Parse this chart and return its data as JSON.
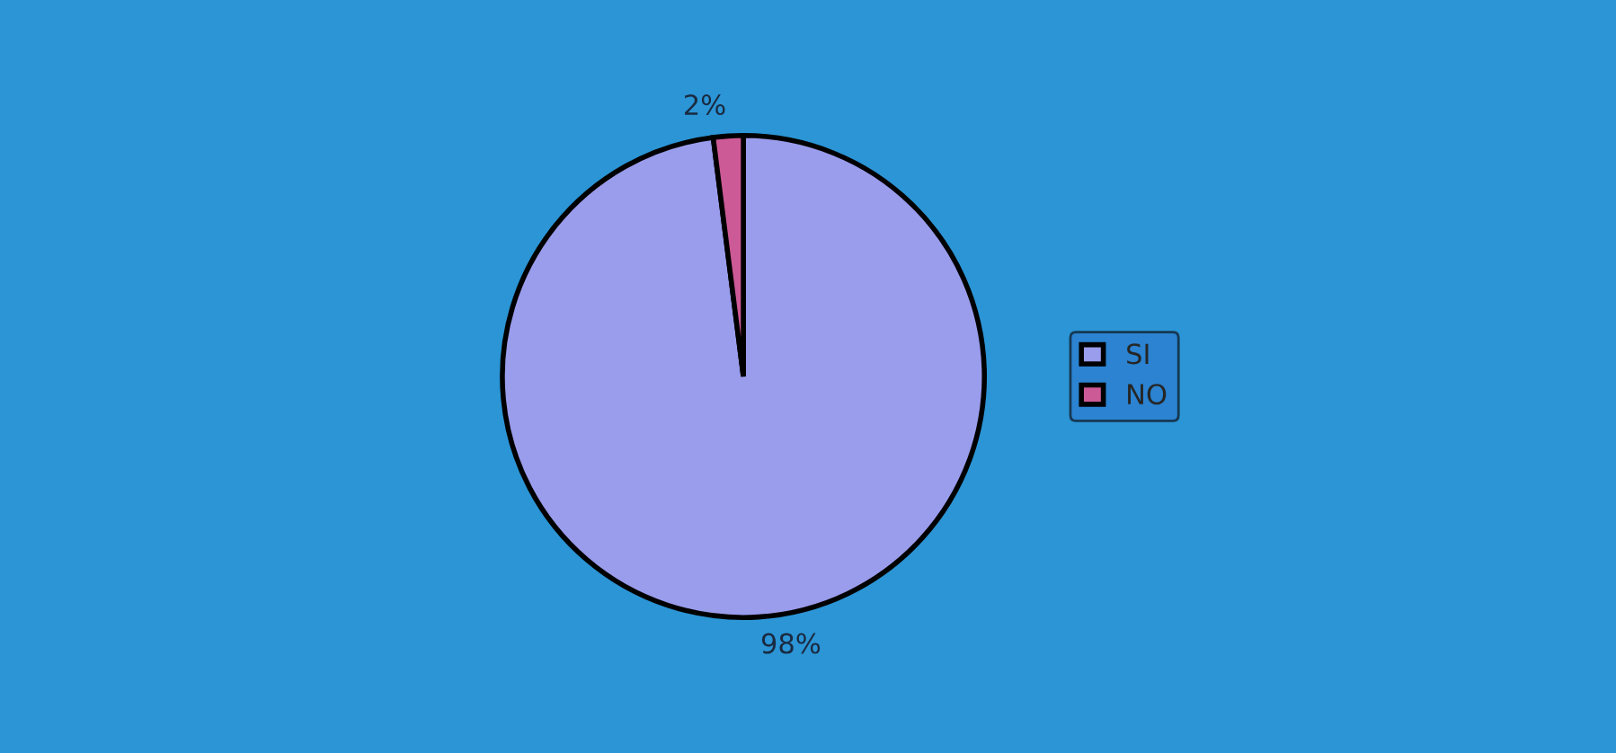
{
  "chart_data": {
    "type": "pie",
    "categories": [
      "SI",
      "NO"
    ],
    "values": [
      98,
      2
    ],
    "colors": [
      "#9a9cec",
      "#cc5a96"
    ],
    "value_labels": [
      "98%",
      "2%"
    ],
    "legend": "right"
  }
}
